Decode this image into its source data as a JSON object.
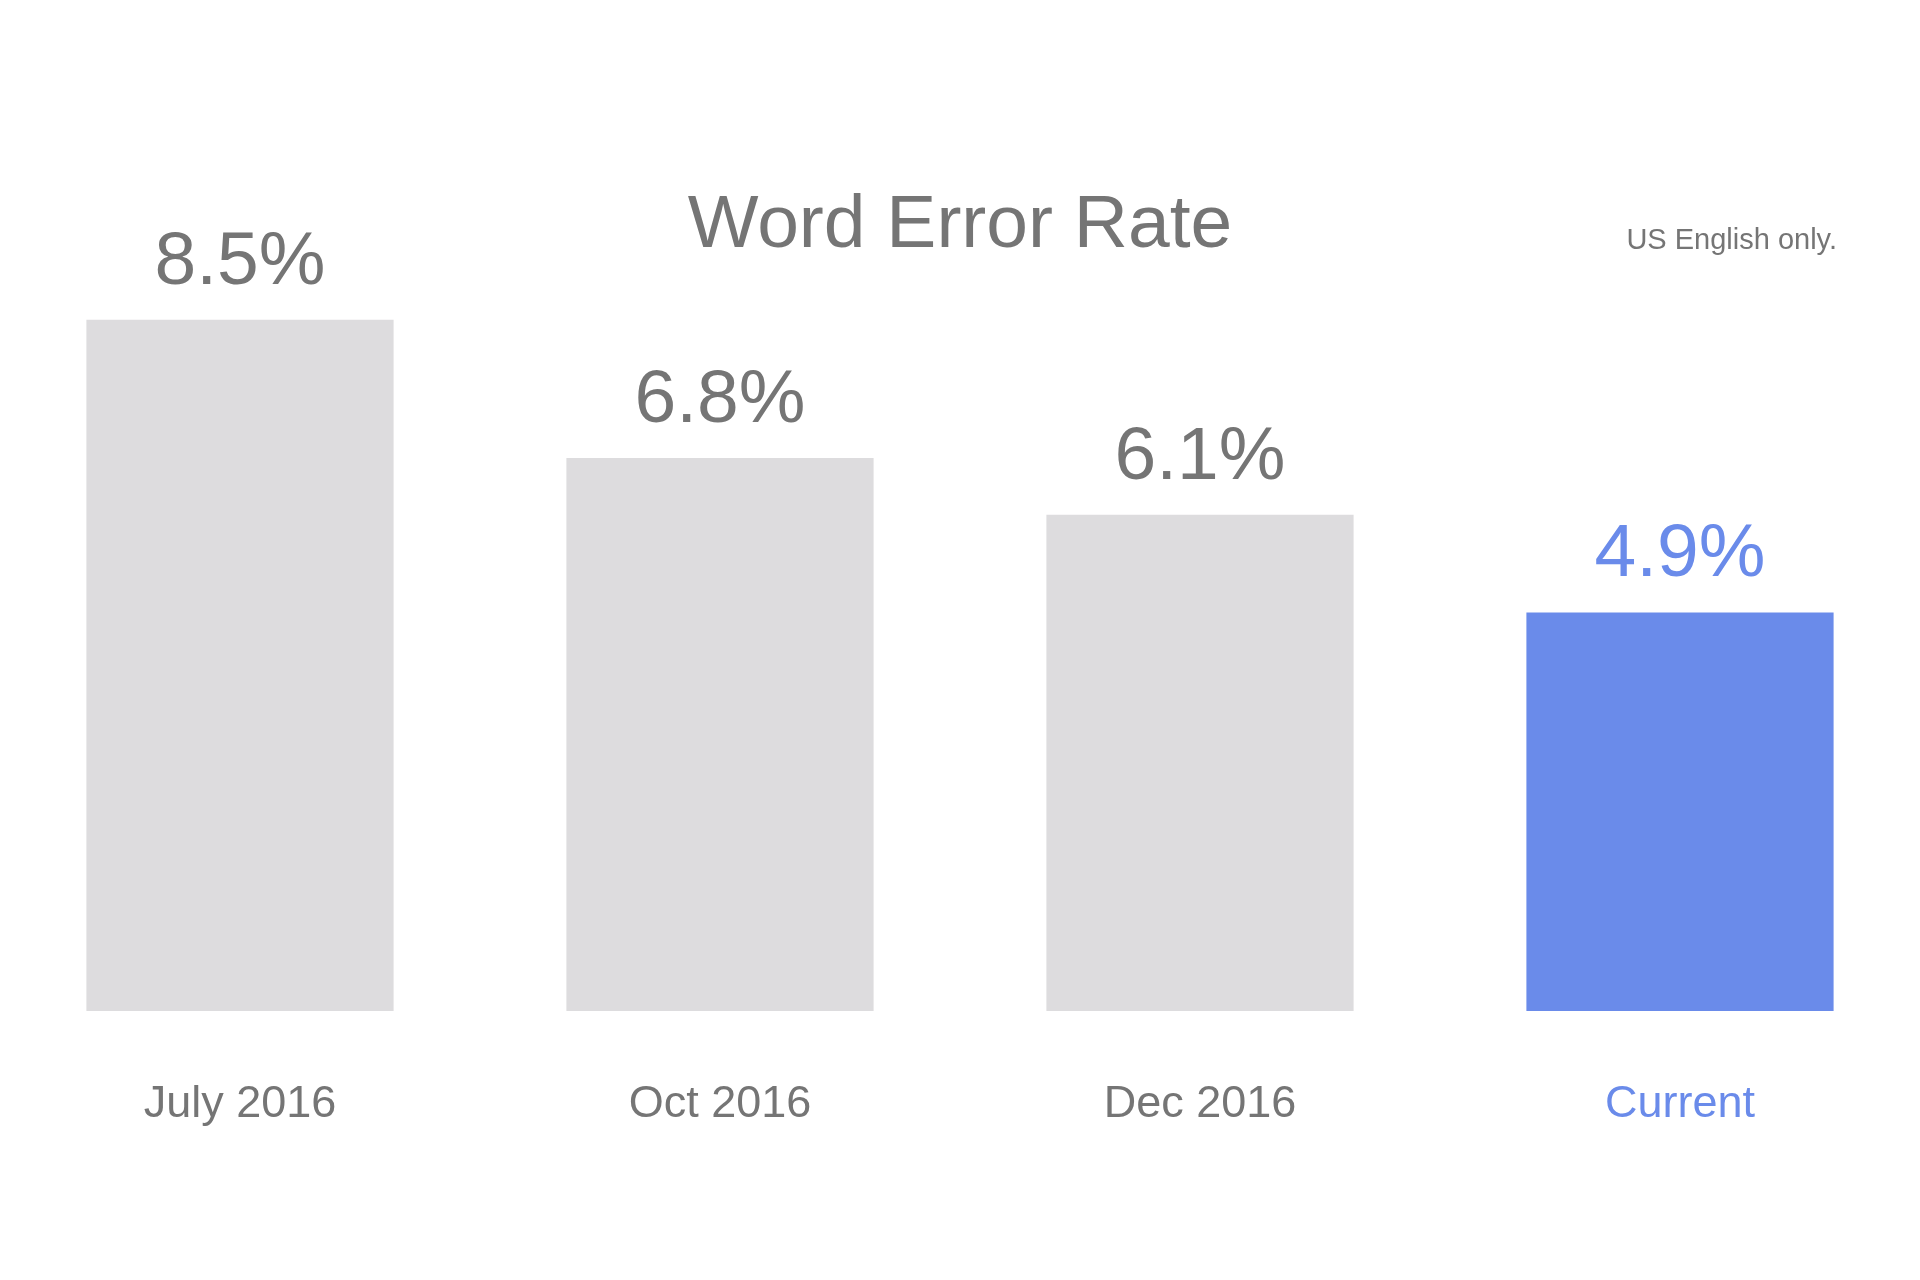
{
  "chart_data": {
    "type": "bar",
    "title": "Word Error Rate",
    "categories": [
      "July 2016",
      "Oct 2016",
      "Dec 2016",
      "Current"
    ],
    "values": [
      8.5,
      6.8,
      6.1,
      4.9
    ],
    "colors": [
      "#dddcde",
      "#dddcde",
      "#dddcde",
      "#6a8bea"
    ],
    "value_labels": [
      "8.5%",
      "6.8%",
      "6.1%",
      "4.9%"
    ],
    "annotations": [
      "US English only."
    ]
  }
}
